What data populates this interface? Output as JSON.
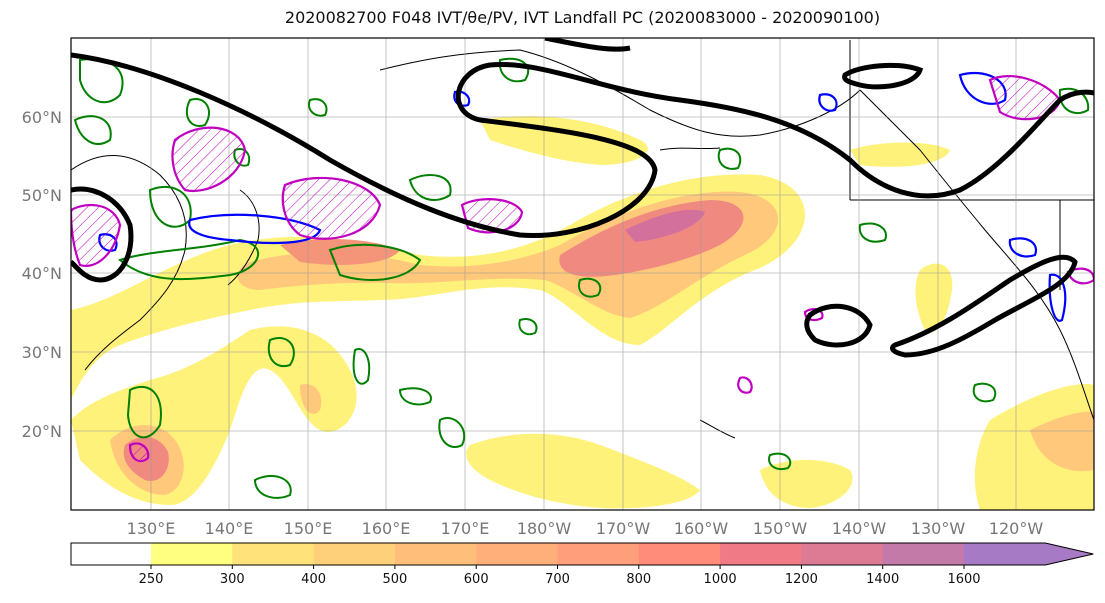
{
  "title": "2020082700 F048 IVT/θe/PV, IVT Landfall PC (2020083000 - 2020090100)",
  "lat_labels": [
    "60°N",
    "50°N",
    "40°N",
    "30°N",
    "20°N"
  ],
  "lon_labels": [
    "130°E",
    "140°E",
    "150°E",
    "160°E",
    "170°E",
    "180°W",
    "170°W",
    "160°W",
    "150°W",
    "140°W",
    "130°W",
    "120°W"
  ],
  "colorbar": {
    "levels": [
      "250",
      "300",
      "400",
      "500",
      "600",
      "700",
      "800",
      "1000",
      "1200",
      "1400",
      "1600"
    ],
    "colors": [
      "#ffff80",
      "#ffe27a",
      "#ffd07a",
      "#ffbf7a",
      "#ffb07a",
      "#ff9e7a",
      "#ff8c7a",
      "#f07a85",
      "#dd7a94",
      "#c47aa8",
      "#a77ac6"
    ],
    "extend": "max"
  },
  "legend_colors": {
    "ivt_fill_low": "#fff27a",
    "ivt_fill_high": "#d4709c",
    "landfall_pc": "#000000",
    "theta_e": "#008000",
    "pv_blue": "#0000ff",
    "pv_magenta": "#c000c0"
  }
}
